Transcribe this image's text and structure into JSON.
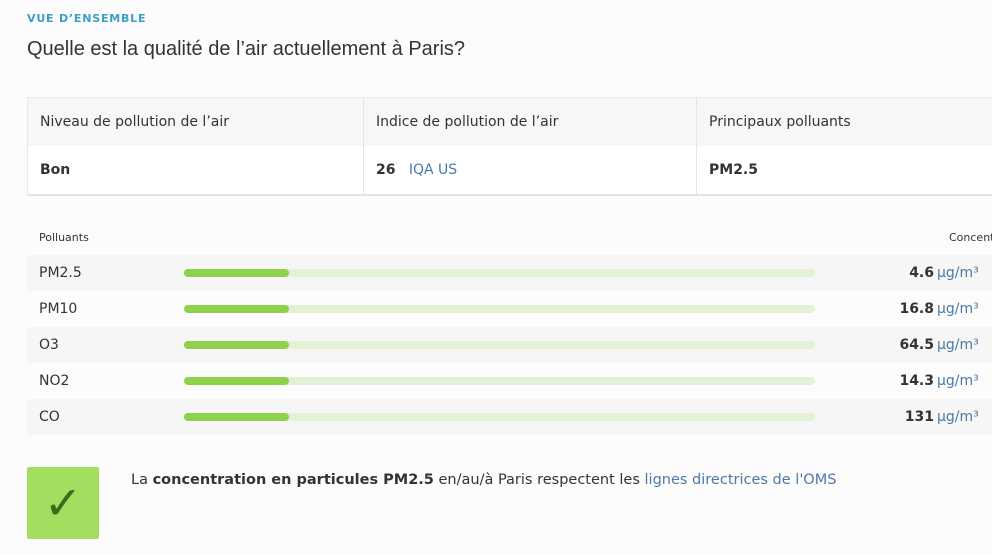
{
  "header": {
    "eyebrow": "VUE D’ENSEMBLE",
    "title": "Quelle est la qualité de l’air actuellement à Paris?"
  },
  "summary": {
    "columns": [
      "Niveau de pollution de l’air",
      "Indice de pollution de l’air",
      "Principaux polluants"
    ],
    "level": "Bon",
    "index": 26,
    "index_unit": "IQA US",
    "main_pollutant": "PM2.5"
  },
  "pollutants": {
    "header_name": "Polluants",
    "header_concentration": "Concent",
    "unit": "µg/m³",
    "rows": [
      {
        "name": "PM2.5",
        "value": 4.6
      },
      {
        "name": "PM10",
        "value": 16.8
      },
      {
        "name": "O3",
        "value": 64.5
      },
      {
        "name": "NO2",
        "value": 14.3
      },
      {
        "name": "CO",
        "value": 131
      }
    ]
  },
  "note": {
    "prefix": "La",
    "bold": "concentration en particules PM2.5",
    "middle": "en/au/à Paris respectent les",
    "link": "lignes directrices de l'OMS"
  }
}
